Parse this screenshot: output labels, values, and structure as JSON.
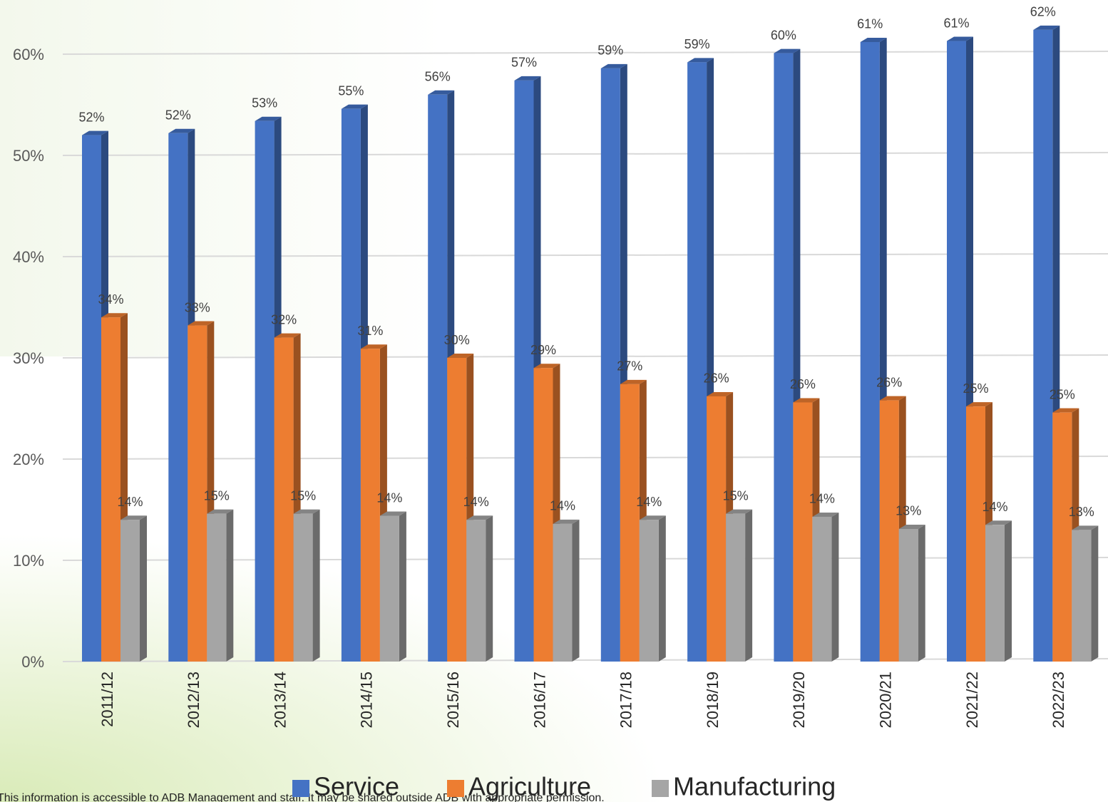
{
  "chart_data": {
    "type": "bar",
    "categories": [
      "2011/12",
      "2012/13",
      "2013/14",
      "2014/15",
      "2015/16",
      "2016/17",
      "2017/18",
      "2018/19",
      "2019/20",
      "2020/21",
      "2021/22",
      "2022/23"
    ],
    "series": [
      {
        "name": "Service",
        "color": "#4472c4",
        "values": [
          52.0,
          52.2,
          53.4,
          54.6,
          56.0,
          57.4,
          58.6,
          59.2,
          60.1,
          61.2,
          61.3,
          62.4
        ],
        "value_labels": [
          "52%",
          "52%",
          "53%",
          "55%",
          "56%",
          "57%",
          "59%",
          "59%",
          "60%",
          "61%",
          "61%",
          "62%"
        ]
      },
      {
        "name": "Agriculture",
        "color": "#ed7d31",
        "values": [
          34.0,
          33.2,
          32.0,
          30.9,
          30.0,
          29.0,
          27.4,
          26.2,
          25.6,
          25.8,
          25.2,
          24.6
        ],
        "value_labels": [
          "34%",
          "33%",
          "32%",
          "31%",
          "30%",
          "29%",
          "27%",
          "26%",
          "26%",
          "26%",
          "25%",
          "25%"
        ]
      },
      {
        "name": "Manufacturing",
        "color": "#a5a5a5",
        "values": [
          14.0,
          14.6,
          14.6,
          14.4,
          14.0,
          13.6,
          14.0,
          14.6,
          14.3,
          13.1,
          13.5,
          13.0
        ],
        "value_labels": [
          "14%",
          "15%",
          "15%",
          "14%",
          "14%",
          "14%",
          "14%",
          "15%",
          "14%",
          "13%",
          "14%",
          "13%"
        ]
      }
    ],
    "ylim": [
      0,
      62.4
    ],
    "yticks": [
      {
        "value": 0,
        "label": "0%"
      },
      {
        "value": 10,
        "label": "10%"
      },
      {
        "value": 20,
        "label": "20%"
      },
      {
        "value": 30,
        "label": "30%"
      },
      {
        "value": 40,
        "label": "40%"
      },
      {
        "value": 50,
        "label": "50%"
      },
      {
        "value": 60,
        "label": "60%"
      }
    ],
    "grid": true,
    "legend": "bottom",
    "footnote": "This information is accessible to ADB Management and staff. It may be shared outside ADB with appropriate permission."
  }
}
